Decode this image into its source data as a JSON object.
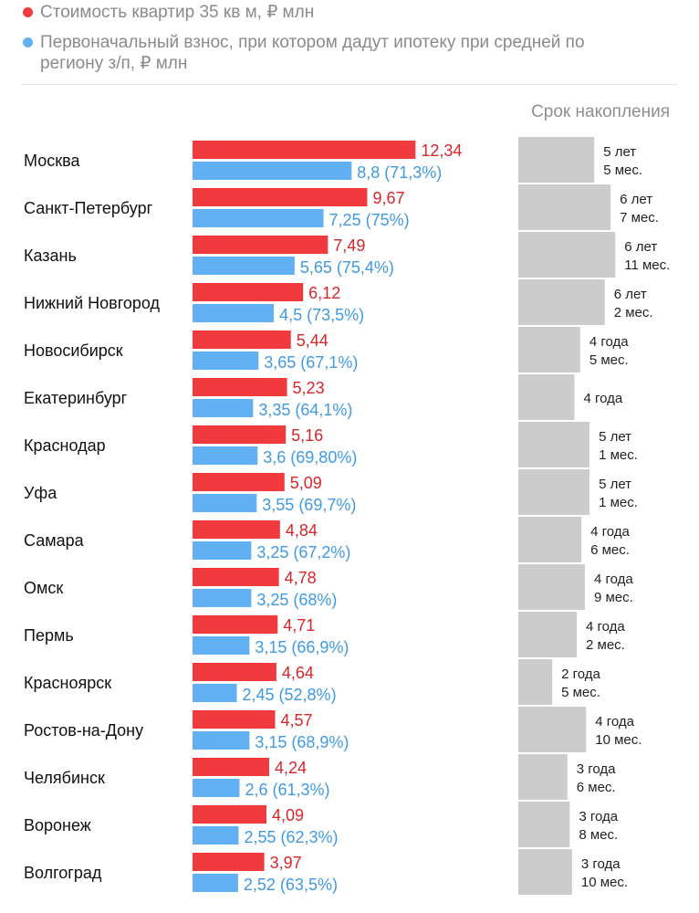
{
  "chart_data": {
    "type": "bar",
    "legend": [
      {
        "name": "Стоимость квартир 35 кв м, ₽ млн",
        "color": "#f03a3e"
      },
      {
        "name": "Первоначальный взнос, при котором дадут ипотеку при средней по региону з/п, ₽ млн",
        "color": "#62b0f4"
      }
    ],
    "accumulation_header": "Срок накопления",
    "accumulation_color": "#cccccc",
    "rows": [
      {
        "city": "Москва",
        "price": 12.34,
        "price_label": "12,34",
        "down": 8.8,
        "down_label": "8,8 (71,3%)",
        "term_months": 65,
        "term": [
          "5 лет",
          "5 мес."
        ]
      },
      {
        "city": "Санкт-Петербург",
        "price": 9.67,
        "price_label": "9,67",
        "down": 7.25,
        "down_label": "7,25 (75%)",
        "term_months": 79,
        "term": [
          "6 лет",
          "7 мес."
        ]
      },
      {
        "city": "Казань",
        "price": 7.49,
        "price_label": "7,49",
        "down": 5.65,
        "down_label": "5,65 (75,4%)",
        "term_months": 83,
        "term": [
          "6 лет",
          "11 мес."
        ]
      },
      {
        "city": "Нижний Новгород",
        "price": 6.12,
        "price_label": "6,12",
        "down": 4.5,
        "down_label": "4,5 (73,5%)",
        "term_months": 74,
        "term": [
          "6 лет",
          "2 мес."
        ]
      },
      {
        "city": "Новосибирск",
        "price": 5.44,
        "price_label": "5,44",
        "down": 3.65,
        "down_label": "3,65 (67,1%)",
        "term_months": 53,
        "term": [
          "4 года",
          "5 мес."
        ]
      },
      {
        "city": "Екатеринбург",
        "price": 5.23,
        "price_label": "5,23",
        "down": 3.35,
        "down_label": "3,35 (64,1%)",
        "term_months": 48,
        "term": [
          "4 года"
        ]
      },
      {
        "city": "Краснодар",
        "price": 5.16,
        "price_label": "5,16",
        "down": 3.6,
        "down_label": "3,6 (69,80%)",
        "term_months": 61,
        "term": [
          "5 лет",
          "1 мес."
        ]
      },
      {
        "city": "Уфа",
        "price": 5.09,
        "price_label": "5,09",
        "down": 3.55,
        "down_label": "3,55 (69,7%)",
        "term_months": 61,
        "term": [
          "5 лет",
          "1 мес."
        ]
      },
      {
        "city": "Самара",
        "price": 4.84,
        "price_label": "4,84",
        "down": 3.25,
        "down_label": "3,25 (67,2%)",
        "term_months": 54,
        "term": [
          "4 года",
          "6 мес."
        ]
      },
      {
        "city": "Омск",
        "price": 4.78,
        "price_label": "4,78",
        "down": 3.25,
        "down_label": "3,25 (68%)",
        "term_months": 57,
        "term": [
          "4 года",
          "9 мес."
        ]
      },
      {
        "city": "Пермь",
        "price": 4.71,
        "price_label": "4,71",
        "down": 3.15,
        "down_label": "3,15 (66,9%)",
        "term_months": 50,
        "term": [
          "4 года",
          "2 мес."
        ]
      },
      {
        "city": "Красноярск",
        "price": 4.64,
        "price_label": "4,64",
        "down": 2.45,
        "down_label": "2,45 (52,8%)",
        "term_months": 29,
        "term": [
          "2 года",
          "5 мес."
        ]
      },
      {
        "city": "Ростов-на-Дону",
        "price": 4.57,
        "price_label": "4,57",
        "down": 3.15,
        "down_label": "3,15 (68,9%)",
        "term_months": 58,
        "term": [
          "4 года",
          "10 мес."
        ]
      },
      {
        "city": "Челябинск",
        "price": 4.24,
        "price_label": "4,24",
        "down": 2.6,
        "down_label": "2,6 (61,3%)",
        "term_months": 42,
        "term": [
          "3 года",
          "6 мес."
        ]
      },
      {
        "city": "Воронеж",
        "price": 4.09,
        "price_label": "4,09",
        "down": 2.55,
        "down_label": "2,55 (62,3%)",
        "term_months": 44,
        "term": [
          "3 года",
          "8 мес."
        ]
      },
      {
        "city": "Волгоград",
        "price": 3.97,
        "price_label": "3,97",
        "down": 2.52,
        "down_label": "2,52 (63,5%)",
        "term_months": 46,
        "term": [
          "3 года",
          "10 мес."
        ]
      }
    ]
  }
}
